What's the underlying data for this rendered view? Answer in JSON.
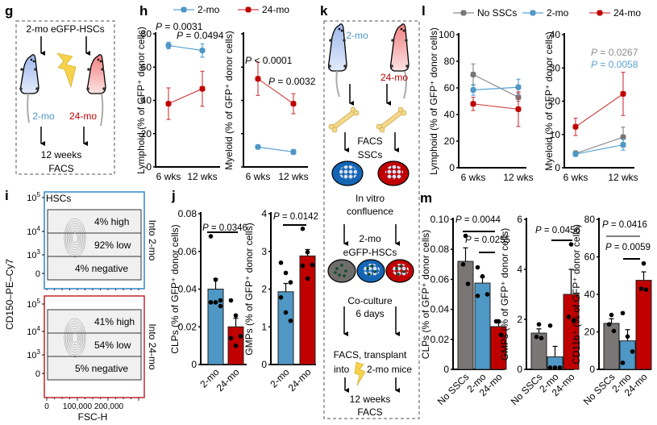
{
  "colors": {
    "young": "#4f97c5",
    "old": "#c00000",
    "none": "#7a7675",
    "young_line": "#5aa3d3",
    "old_line": "#d0464b",
    "none_line": "#8c8c8c",
    "bone": "#f5d98b",
    "bolt": "#f7d24a"
  },
  "panels": {
    "g": {
      "label": "g",
      "top_text": "2-mo eGFP-HSCs",
      "left_mouse": "2-mo",
      "right_mouse": "24-mo",
      "bottom1": "12 weeks",
      "bottom2": "FACS"
    },
    "h": {
      "label": "h"
    },
    "i": {
      "label": "i"
    },
    "j": {
      "label": "j"
    },
    "k": {
      "label": "k",
      "left_mouse": "2-mo",
      "right_mouse": "24-mo",
      "facs": "FACS",
      "sscs": "SSCs",
      "invitro1": "In vitro",
      "invitro2": "confluence",
      "hsc1": "2-mo",
      "hsc2": "eGFP-HSCs",
      "coculture1": "Co-culture",
      "coculture2": "6 days",
      "transplant1": "FACS, transplant",
      "transplant2a": "into",
      "transplant2b": "2-mo mice",
      "bottom1": "12 weeks",
      "bottom2": "FACS"
    },
    "l": {
      "label": "l"
    },
    "m": {
      "label": "m"
    }
  },
  "legend_h": [
    {
      "name": "2-mo",
      "color": "#4f97c5"
    },
    {
      "name": "24-mo",
      "color": "#c00000"
    }
  ],
  "legend_l": [
    {
      "name": "No SSCs",
      "color": "#7a7675"
    },
    {
      "name": "2-mo",
      "color": "#4f97c5"
    },
    {
      "name": "24-mo",
      "color": "#c00000"
    }
  ],
  "flow_i": {
    "ylabel": "CD150–PE–Cy7",
    "xlabel": "FSC-H",
    "xticks": [
      "0",
      "100,000",
      "200,000"
    ],
    "yticks": [
      "10^5",
      "10^4",
      "10^3",
      "0"
    ],
    "plots": [
      {
        "title": "HSCs",
        "side_label": "Into 2-mo",
        "high": "4% high",
        "low": "92% low",
        "neg": "4% negative",
        "border": "#2f87c9"
      },
      {
        "title": "",
        "side_label": "Into 24-mo",
        "high": "41% high",
        "low": "54% low",
        "neg": "5% negative",
        "border": "#c0272d"
      }
    ]
  },
  "chart_data": [
    {
      "id": "h-lymphoid",
      "type": "line",
      "ylabel": "Lymphoid (% of GFP⁺ donor cells)",
      "x": [
        "6 wks",
        "12 wks"
      ],
      "ylim": [
        0,
        80
      ],
      "yticks": [
        0,
        20,
        40,
        60,
        80
      ],
      "series": [
        {
          "name": "2-mo",
          "values": [
            73,
            70
          ],
          "err": [
            2,
            4
          ]
        },
        {
          "name": "24-mo",
          "values": [
            38,
            47
          ],
          "err": [
            9.5,
            10.5
          ]
        }
      ],
      "annotations": [
        "P = 0.0031",
        "P = 0.0494"
      ]
    },
    {
      "id": "h-myeloid",
      "type": "line",
      "ylabel": "Myeloid (% of GFP⁺ donor cells)",
      "x": [
        "6 wks",
        "12 wks"
      ],
      "ylim": [
        0,
        80
      ],
      "yticks": [
        0,
        20,
        40,
        60,
        80
      ],
      "ytick_labels_hidden": true,
      "series": [
        {
          "name": "2-mo",
          "values": [
            12,
            9
          ],
          "err": [
            1,
            1.5
          ]
        },
        {
          "name": "24-mo",
          "values": [
            53,
            38
          ],
          "err": [
            10,
            6
          ]
        }
      ],
      "annotations": [
        "P < 0.0001",
        "P = 0.0032"
      ]
    },
    {
      "id": "j-clps",
      "type": "bar",
      "ylabel": "CLPs (% of GFP⁺ donor cells)",
      "categories": [
        "2-mo",
        "24-mo"
      ],
      "values": [
        0.04,
        0.02
      ],
      "err": [
        0.0055,
        0.0045
      ],
      "points": [
        [
          0.068,
          0.045,
          0.034,
          0.033,
          0.033,
          0.031
        ],
        [
          0.034,
          0.026,
          0.015,
          0.014,
          0.01
        ]
      ],
      "ylim": [
        0,
        0.08
      ],
      "yticks": [
        "0",
        "0.02",
        "0.04",
        "0.06",
        "0.08"
      ],
      "annotations": [
        "P = 0.0346"
      ]
    },
    {
      "id": "j-gmps",
      "type": "bar",
      "ylabel": "GMPs (% of GFP⁺ donor cells)",
      "categories": [
        "2-mo",
        "24-mo"
      ],
      "values": [
        1.93,
        2.88
      ],
      "err": [
        0.22,
        0.17
      ],
      "points": [
        [
          2.7,
          2.43,
          2.18,
          1.78,
          1.38,
          1.16
        ],
        [
          3.6,
          2.98,
          2.64,
          2.62,
          2.28
        ]
      ],
      "ylim": [
        0,
        4
      ],
      "yticks": [
        "0",
        "1",
        "2",
        "3",
        "4"
      ],
      "annotations": [
        "P = 0.0142"
      ]
    },
    {
      "id": "l-lymphoid",
      "type": "line",
      "ylabel": "Lymphoid (% of GFP⁺ donor cells)",
      "x": [
        "6 wks",
        "12 wks"
      ],
      "ylim": [
        0,
        100
      ],
      "yticks": [
        0,
        20,
        40,
        60,
        80,
        100
      ],
      "series": [
        {
          "name": "No SSCs",
          "values": [
            70,
            53
          ],
          "err": [
            8,
            3
          ]
        },
        {
          "name": "2-mo",
          "values": [
            58.5,
            60.5
          ],
          "err": [
            4,
            6
          ]
        },
        {
          "name": "24-mo",
          "values": [
            48,
            44
          ],
          "err": [
            5,
            13
          ]
        }
      ],
      "annotations": []
    },
    {
      "id": "l-myeloid",
      "type": "line",
      "ylabel": "Myeloid (% of GFP⁺ donor cells)",
      "x": [
        "6 wks",
        "12 wks"
      ],
      "ylim": [
        0,
        40
      ],
      "yticks": [
        0,
        10,
        20,
        30,
        40
      ],
      "series": [
        {
          "name": "No SSCs",
          "values": [
            4.3,
            9.2
          ],
          "err": [
            0.8,
            3
          ]
        },
        {
          "name": "2-mo",
          "values": [
            4.1,
            6.9
          ],
          "err": [
            0.7,
            1.6
          ]
        },
        {
          "name": "24-mo",
          "values": [
            12.3,
            22.2
          ],
          "err": [
            2.6,
            6.5
          ]
        }
      ],
      "annotations": [
        "P = 0.0267",
        "P = 0.0058"
      ]
    },
    {
      "id": "m-clps",
      "type": "bar",
      "ylabel": "CLPs (% of GFP⁺ donor cells)",
      "categories": [
        "No SSCs",
        "2-mo",
        "24-mo"
      ],
      "values": [
        0.072,
        0.0575,
        0.0285
      ],
      "err": [
        0.009,
        0.004,
        0.0025
      ],
      "points": [
        [
          0.089,
          0.07,
          0.057
        ],
        [
          0.068,
          0.062,
          0.05,
          0.049
        ],
        [
          0.032,
          0.032,
          0.023
        ]
      ],
      "ylim": [
        0,
        0.1
      ],
      "yticks": [
        "0",
        "0.02",
        "0.04",
        "0.06",
        "0.08",
        "0.10"
      ],
      "annotations": [
        "P = 0.0044",
        "P = 0.0255"
      ]
    },
    {
      "id": "m-gmps",
      "type": "bar",
      "ylabel": "GMPs (% of GFP⁺ donor cells)",
      "categories": [
        "No SSCs",
        "2-mo",
        "24-mo"
      ],
      "values": [
        1.45,
        0.5,
        3.0
      ],
      "err": [
        0.17,
        0.42,
        1.0
      ],
      "points": [
        [
          1.8,
          1.3,
          1.25
        ],
        [
          1.75,
          0.07,
          0.07,
          0.07
        ],
        [
          5.0,
          2.1,
          1.95
        ]
      ],
      "ylim": [
        0,
        6
      ],
      "yticks": [
        "0",
        "2",
        "4",
        "6"
      ],
      "annotations": [
        "P = 0.0456"
      ]
    },
    {
      "id": "m-cd11b",
      "type": "bar",
      "ylabel": "CD11b⁺ (% of GFP⁺ donor cells)",
      "categories": [
        "No SSCs",
        "2-mo",
        "24-mo"
      ],
      "values": [
        24.5,
        15.2,
        47.5
      ],
      "err": [
        2.5,
        6,
        4.5
      ],
      "points": [
        [
          29,
          24,
          20.5
        ],
        [
          30,
          17.5,
          9.5,
          3.5
        ],
        [
          56.5,
          43,
          42.5
        ]
      ],
      "ylim": [
        0,
        80
      ],
      "yticks": [
        "0",
        "20",
        "40",
        "60",
        "80"
      ],
      "annotations": [
        "P = 0.0416",
        "P = 0.0059"
      ]
    }
  ]
}
